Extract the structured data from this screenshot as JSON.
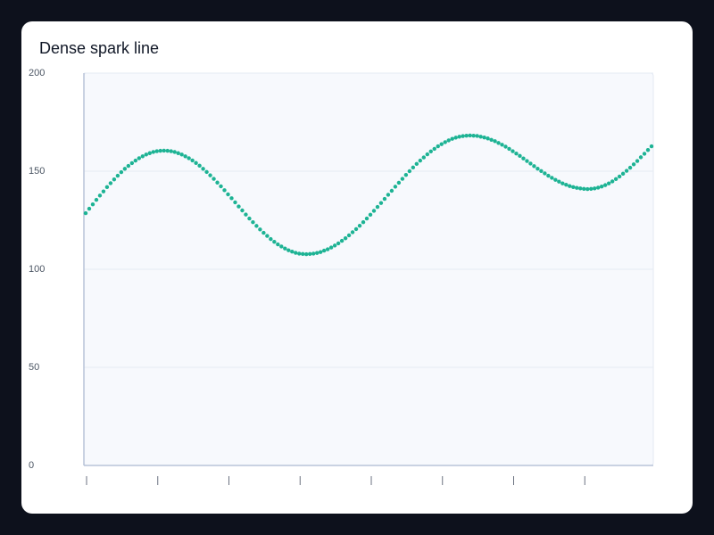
{
  "chart_data": {
    "type": "line",
    "title": "Dense spark line",
    "values": [
      128.6,
      130.9,
      133.1,
      135.4,
      137.6,
      139.7,
      141.9,
      143.9,
      145.8,
      147.7,
      149.5,
      151.2,
      152.7,
      154.1,
      155.4,
      156.6,
      157.6,
      158.5,
      159.2,
      159.8,
      160.2,
      160.4,
      160.5,
      160.4,
      160.2,
      159.8,
      159.2,
      158.5,
      157.6,
      156.6,
      155.5,
      154.2,
      152.8,
      151.2,
      149.6,
      147.9,
      146.1,
      144.2,
      142.3,
      140.3,
      138.2,
      136.2,
      134.1,
      132.0,
      130.0,
      127.9,
      125.9,
      124.0,
      122.1,
      120.3,
      118.6,
      117.0,
      115.4,
      114.0,
      112.7,
      111.6,
      110.6,
      109.7,
      109.0,
      108.4,
      108.0,
      107.8,
      107.7,
      107.8,
      108.0,
      108.3,
      108.8,
      109.5,
      110.2,
      111.1,
      112.1,
      113.2,
      114.5,
      115.8,
      117.3,
      118.9,
      120.5,
      122.2,
      124.0,
      125.9,
      127.8,
      129.8,
      131.8,
      133.8,
      135.9,
      138.0,
      140.0,
      142.1,
      144.1,
      146.1,
      148.1,
      150.0,
      151.9,
      153.7,
      155.4,
      157.0,
      158.6,
      160.1,
      161.4,
      162.7,
      163.8,
      164.8,
      165.7,
      166.5,
      167.1,
      167.6,
      167.9,
      168.1,
      168.2,
      168.1,
      168.0,
      167.6,
      167.2,
      166.7,
      166.0,
      165.3,
      164.4,
      163.5,
      162.5,
      161.4,
      160.2,
      159.0,
      157.8,
      156.5,
      155.2,
      153.9,
      152.6,
      151.3,
      150.1,
      148.9,
      147.7,
      146.6,
      145.6,
      144.7,
      143.8,
      143.1,
      142.4,
      141.9,
      141.5,
      141.2,
      141.0,
      140.9,
      141.0,
      141.2,
      141.6,
      142.2,
      142.9,
      143.8,
      144.8,
      146.0,
      147.3,
      148.7,
      150.2,
      151.8,
      153.5,
      155.2,
      157.1,
      158.9,
      160.8,
      162.7
    ],
    "color": "#1db394",
    "markers": true,
    "ylim": [
      0,
      200
    ],
    "yticks": [
      0,
      50,
      100,
      150,
      200
    ],
    "xlim": [
      0,
      159
    ],
    "xticks": [
      0,
      20,
      40,
      60,
      80,
      100,
      120,
      140
    ],
    "grid": true
  }
}
